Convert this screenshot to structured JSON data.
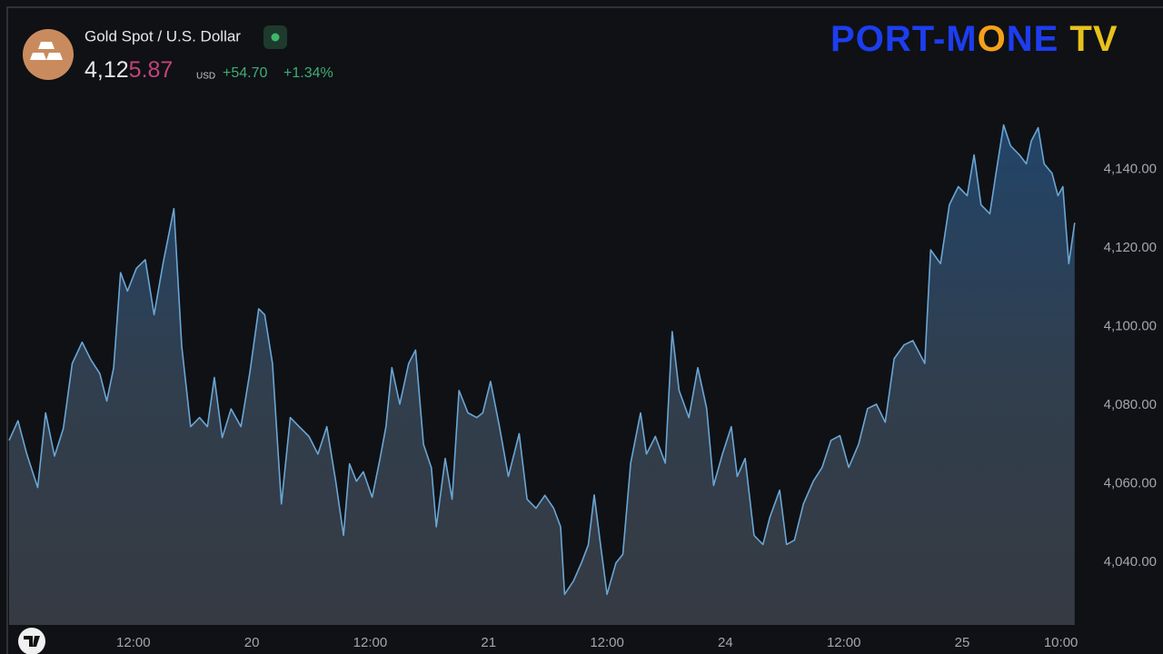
{
  "chart_data": {
    "type": "area",
    "title": "Gold Spot / U.S. Dollar",
    "price": {
      "lead": "4,12",
      "tail": "5.87"
    },
    "currency": "USD",
    "change": "+54.70",
    "change_pct": "+1.34%",
    "watermark": "PORT-MONE TV",
    "color": "#6aa6d4",
    "x": [
      -0.6,
      0.3,
      1.2,
      2.3,
      3.1,
      4.0,
      4.9,
      5.8,
      6.8,
      7.7,
      8.6,
      9.3,
      10.0,
      10.7,
      11.4,
      12.3,
      13.2,
      14.1,
      15.0,
      16.1,
      16.9,
      17.8,
      18.7,
      19.5,
      20.2,
      21.0,
      21.9,
      22.9,
      23.8,
      24.7,
      25.3,
      26.1,
      27.0,
      27.9,
      28.8,
      29.8,
      30.7,
      31.6,
      32.5,
      33.3,
      33.9,
      34.6,
      35.3,
      36.2,
      37.0,
      37.6,
      38.2,
      39.0,
      39.9,
      40.6,
      41.4,
      42.2,
      42.7,
      43.6,
      44.3,
      45.0,
      45.9,
      46.8,
      47.4,
      48.2,
      49.1,
      50.0,
      51.1,
      51.9,
      52.8,
      53.7,
      54.6,
      55.3,
      55.7,
      56.6,
      57.4,
      58.1,
      58.7,
      59.4,
      60.0,
      60.9,
      61.6,
      62.4,
      63.4,
      64.0,
      64.9,
      65.9,
      66.6,
      67.3,
      68.3,
      69.2,
      70.1,
      70.8,
      71.7,
      72.6,
      73.2,
      74.0,
      74.9,
      75.8,
      76.5,
      77.5,
      78.2,
      79.0,
      79.9,
      80.9,
      81.8,
      82.7,
      83.6,
      84.5,
      85.5,
      86.4,
      87.3,
      88.2,
      89.1,
      90.1,
      91.0,
      92.2,
      92.8,
      93.8,
      94.7,
      95.6,
      96.5,
      97.2,
      97.9,
      98.8,
      99.5,
      100.2,
      100.9,
      101.8,
      102.5,
      103.0,
      103.7,
      104.3,
      105.1,
      105.7,
      106.2,
      106.8,
      107.4
    ],
    "values": [
      4071.0,
      4076.0,
      4067.5,
      4059.0,
      4078.0,
      4067.0,
      4074.0,
      4090.6,
      4096.0,
      4091.5,
      4088.0,
      4081.0,
      4089.5,
      4113.7,
      4109.0,
      4114.8,
      4117.0,
      4103.0,
      4116.0,
      4130.0,
      4095.0,
      4074.5,
      4076.8,
      4074.5,
      4087.0,
      4071.7,
      4079.0,
      4074.5,
      4088.3,
      4104.5,
      4103.0,
      4090.6,
      4054.8,
      4076.8,
      4074.5,
      4072.0,
      4067.5,
      4074.5,
      4060.6,
      4046.8,
      4065.0,
      4060.6,
      4063.0,
      4056.5,
      4066.4,
      4074.5,
      4089.5,
      4080.2,
      4090.6,
      4094.0,
      4070.0,
      4064.0,
      4049.0,
      4066.4,
      4056.0,
      4083.7,
      4078.0,
      4076.8,
      4078.0,
      4086.0,
      4074.5,
      4061.8,
      4072.7,
      4056.0,
      4053.7,
      4057.0,
      4053.7,
      4049.0,
      4031.8,
      4035.2,
      4039.8,
      4044.4,
      4057.1,
      4043.3,
      4031.8,
      4039.8,
      4042.0,
      4065.2,
      4078.0,
      4067.5,
      4072.0,
      4065.2,
      4098.7,
      4083.7,
      4076.8,
      4089.5,
      4079.1,
      4059.5,
      4067.5,
      4074.5,
      4061.8,
      4066.4,
      4046.8,
      4044.5,
      4051.4,
      4058.3,
      4044.5,
      4045.6,
      4054.8,
      4060.6,
      4064.1,
      4071.0,
      4072.2,
      4064.1,
      4070.0,
      4079.1,
      4080.2,
      4075.6,
      4091.8,
      4095.3,
      4096.4,
      4090.6,
      4119.5,
      4116.0,
      4131.0,
      4135.6,
      4133.3,
      4143.7,
      4131.0,
      4128.7,
      4140.2,
      4151.3,
      4146.0,
      4143.7,
      4141.4,
      4147.2,
      4150.6,
      4141.4,
      4139.0,
      4133.3,
      4135.6,
      4116.0,
      4126.4
    ],
    "xlim": [
      -0.6,
      107.6
    ],
    "xticks": [
      {
        "value": 12,
        "label": "12:00"
      },
      {
        "value": 24,
        "label": "20"
      },
      {
        "value": 36,
        "label": "12:00"
      },
      {
        "value": 48,
        "label": "21"
      },
      {
        "value": 60,
        "label": "12:00"
      },
      {
        "value": 72,
        "label": "24"
      },
      {
        "value": 84,
        "label": "12:00"
      },
      {
        "value": 96,
        "label": "25"
      },
      {
        "value": 106,
        "label": "10:00"
      }
    ],
    "ylim": [
      4024,
      4160
    ],
    "yticks": [
      {
        "value": 4040,
        "label": "4,040.00"
      },
      {
        "value": 4060,
        "label": "4,060.00"
      },
      {
        "value": 4080,
        "label": "4,080.00"
      },
      {
        "value": 4100,
        "label": "4,100.00"
      },
      {
        "value": 4120,
        "label": "4,120.00"
      },
      {
        "value": 4140,
        "label": "4,140.00"
      }
    ],
    "grid": false
  }
}
